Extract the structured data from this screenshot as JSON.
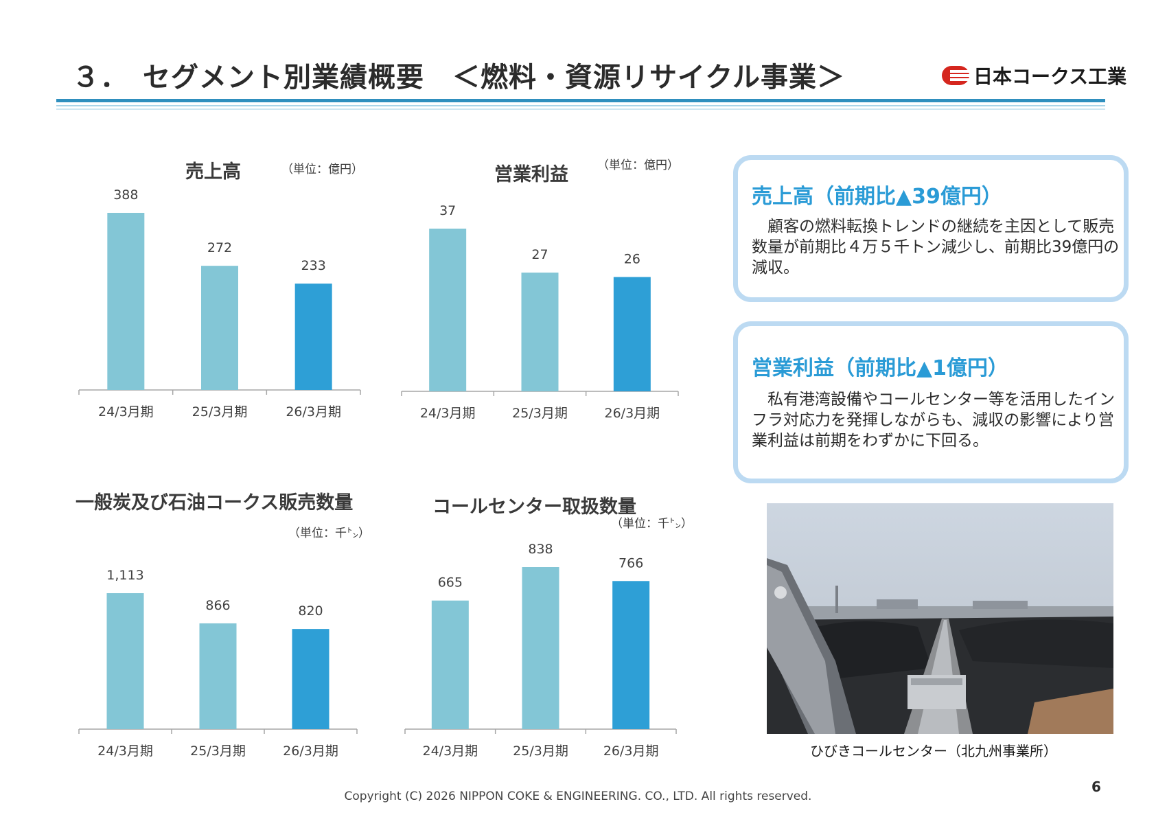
{
  "header": {
    "title": "３．　セグメント別業績概要　＜燃料・資源リサイクル事業＞",
    "logo_text": "日本コークス工業"
  },
  "chart_data": [
    {
      "type": "bar",
      "title": "売上高",
      "unit": "（単位：億円）",
      "categories": [
        "24/3月期",
        "25/3月期",
        "26/3月期"
      ],
      "values": [
        388,
        272,
        233
      ],
      "value_labels": [
        "388",
        "272",
        "233"
      ],
      "colors": [
        "#83c6d6",
        "#83c6d6",
        "#2e9fd6"
      ]
    },
    {
      "type": "bar",
      "title": "営業利益",
      "unit": "（単位：億円）",
      "categories": [
        "24/3月期",
        "25/3月期",
        "26/3月期"
      ],
      "values": [
        37,
        27,
        26
      ],
      "value_labels": [
        "37",
        "27",
        "26"
      ],
      "colors": [
        "#83c6d6",
        "#83c6d6",
        "#2e9fd6"
      ]
    },
    {
      "type": "bar",
      "title": "一般炭及び石油コークス販売数量",
      "unit": "（単位：千㌧）",
      "categories": [
        "24/3月期",
        "25/3月期",
        "26/3月期"
      ],
      "values": [
        1113,
        866,
        820
      ],
      "value_labels": [
        "1,113",
        "866",
        "820"
      ],
      "colors": [
        "#83c6d6",
        "#83c6d6",
        "#2e9fd6"
      ]
    },
    {
      "type": "bar",
      "title": "コールセンター取扱数量",
      "unit": "（単位：千㌧）",
      "categories": [
        "24/3月期",
        "25/3月期",
        "26/3月期"
      ],
      "values": [
        665,
        838,
        766
      ],
      "value_labels": [
        "665",
        "838",
        "766"
      ],
      "colors": [
        "#83c6d6",
        "#83c6d6",
        "#2e9fd6"
      ]
    }
  ],
  "boxes": [
    {
      "heading": "売上高（前期比▲39億円）",
      "body": "　顧客の燃料転換トレンドの継続を主因として販売数量が前期比４万５千トン減少し、前期比39億円の減収。"
    },
    {
      "heading": "営業利益（前期比▲1億円）",
      "body": "　私有港湾設備やコールセンター等を活用したインフラ対応力を発揮しながらも、減収の影響により営業利益は前期をわずかに下回る。"
    }
  ],
  "photo": {
    "caption": "ひびきコールセンター（北九州事業所）"
  },
  "footer": {
    "copyright": "Copyright (C) 2026 NIPPON COKE & ENGINEERING. CO., LTD. All rights reserved.",
    "page_number": "6"
  }
}
